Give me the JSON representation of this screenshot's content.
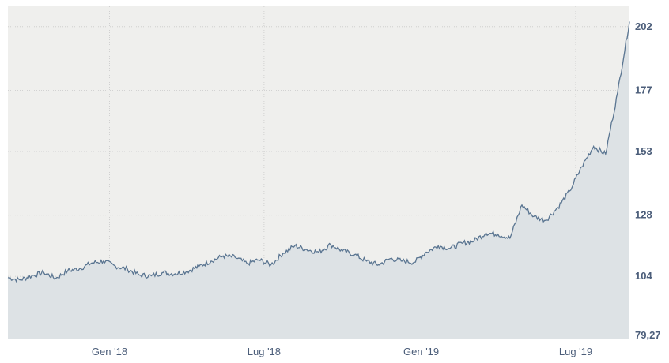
{
  "chart_data": {
    "type": "area",
    "title": "",
    "xlabel": "",
    "ylabel": "",
    "x_range": [
      "2017-09-04",
      "2019-09-02"
    ],
    "ylim": [
      79.27,
      210
    ],
    "y_ticks": [
      "79,27",
      "104",
      "128",
      "153",
      "177",
      "202"
    ],
    "y_tick_values": [
      79.27,
      104,
      128,
      153,
      177,
      202
    ],
    "x_ticks": [
      {
        "label": "Gen '18",
        "date": "2018-01-01"
      },
      {
        "label": "Lug '18",
        "date": "2018-07-01"
      },
      {
        "label": "Gen '19",
        "date": "2019-01-01"
      },
      {
        "label": "Lug '19",
        "date": "2019-07-01"
      }
    ],
    "grid": true,
    "legend": "none",
    "colors": {
      "line": "#5a7591",
      "fill": "#dde2e5",
      "plot_bg": "#efefed",
      "tick_text": "#4c5e7a",
      "grid": "#c9c9c9"
    },
    "series": [
      {
        "points": [
          [
            "2017-09-04",
            103.5
          ],
          [
            "2017-09-18",
            102.6
          ],
          [
            "2017-10-02",
            104.2
          ],
          [
            "2017-10-16",
            105.5
          ],
          [
            "2017-10-30",
            103.2
          ],
          [
            "2017-11-13",
            106.2
          ],
          [
            "2017-11-27",
            107.0
          ],
          [
            "2017-12-11",
            109.2
          ],
          [
            "2017-12-25",
            110.0
          ],
          [
            "2018-01-08",
            108.0
          ],
          [
            "2018-01-22",
            106.8
          ],
          [
            "2018-02-05",
            104.5
          ],
          [
            "2018-02-19",
            104.2
          ],
          [
            "2018-03-05",
            105.5
          ],
          [
            "2018-03-19",
            105.0
          ],
          [
            "2018-04-02",
            106.0
          ],
          [
            "2018-04-16",
            108.0
          ],
          [
            "2018-04-30",
            110.0
          ],
          [
            "2018-05-14",
            112.0
          ],
          [
            "2018-05-28",
            111.5
          ],
          [
            "2018-06-11",
            109.0
          ],
          [
            "2018-06-25",
            110.5
          ],
          [
            "2018-07-09",
            108.5
          ],
          [
            "2018-07-23",
            113.0
          ],
          [
            "2018-08-06",
            116.0
          ],
          [
            "2018-08-20",
            114.5
          ],
          [
            "2018-09-03",
            113.5
          ],
          [
            "2018-09-17",
            116.5
          ],
          [
            "2018-10-01",
            114.0
          ],
          [
            "2018-10-15",
            112.5
          ],
          [
            "2018-10-29",
            110.0
          ],
          [
            "2018-11-12",
            108.5
          ],
          [
            "2018-11-26",
            111.0
          ],
          [
            "2018-12-10",
            110.0
          ],
          [
            "2018-12-24",
            109.5
          ],
          [
            "2019-01-07",
            113.5
          ],
          [
            "2019-01-21",
            116.0
          ],
          [
            "2019-02-04",
            115.0
          ],
          [
            "2019-02-18",
            117.0
          ],
          [
            "2019-03-04",
            118.0
          ],
          [
            "2019-03-18",
            121.0
          ],
          [
            "2019-04-01",
            120.5
          ],
          [
            "2019-04-15",
            119.0
          ],
          [
            "2019-04-29",
            132.0
          ],
          [
            "2019-05-13",
            127.5
          ],
          [
            "2019-05-27",
            126.0
          ],
          [
            "2019-06-10",
            131.0
          ],
          [
            "2019-06-24",
            137.5
          ],
          [
            "2019-07-08",
            147.0
          ],
          [
            "2019-07-22",
            155.0
          ],
          [
            "2019-08-05",
            152.0
          ],
          [
            "2019-08-19",
            176.0
          ],
          [
            "2019-09-02",
            204.0
          ]
        ]
      }
    ]
  }
}
